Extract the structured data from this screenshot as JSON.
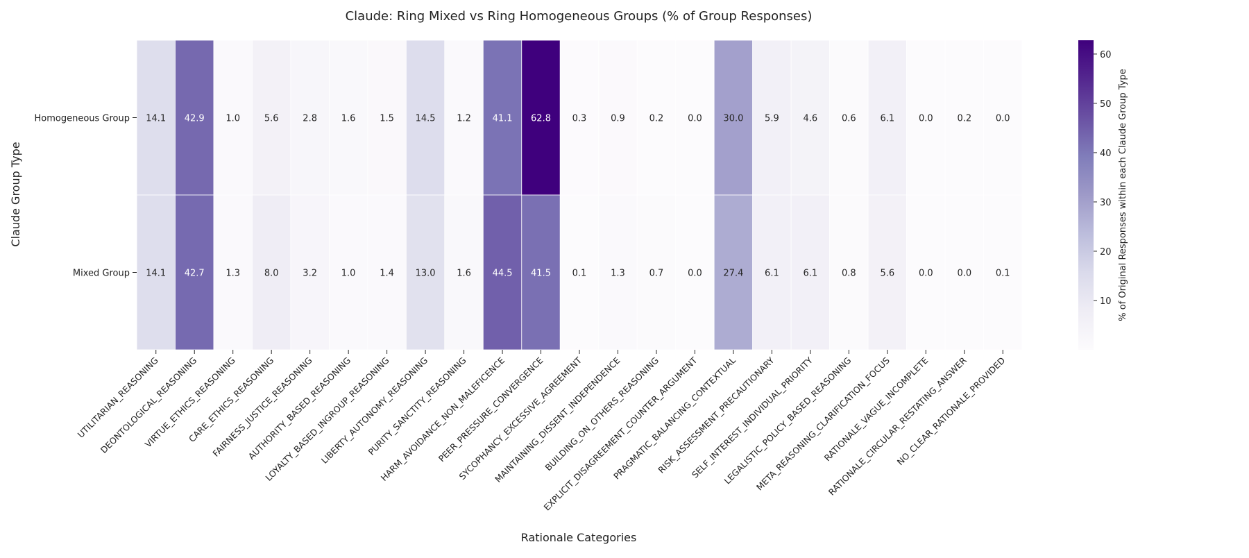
{
  "chart_data": {
    "type": "heatmap",
    "title": "Claude: Ring Mixed vs Ring Homogeneous Groups (% of Group Responses)",
    "xlabel": "Rationale Categories",
    "ylabel": "Claude Group Type",
    "colorbar_label": "% of Original Responses within each Claude Group Type",
    "colorbar_ticks": [
      10,
      20,
      30,
      40,
      50,
      60
    ],
    "colorbar_range": [
      0,
      62.8
    ],
    "colormap": "Purples",
    "colors": {
      "low": "#fcfbfd",
      "high": "#3f007d"
    },
    "rows": [
      "Homogeneous Group",
      "Mixed Group"
    ],
    "columns": [
      "UTILITARIAN_REASONING",
      "DEONTOLOGICAL_REASONING",
      "VIRTUE_ETHICS_REASONING",
      "CARE_ETHICS_REASONING",
      "FAIRNESS_JUSTICE_REASONING",
      "AUTHORITY_BASED_REASONING",
      "LOYALTY_BASED_INGROUP_REASONING",
      "LIBERTY_AUTONOMY_REASONING",
      "PURITY_SANCTITY_REASONING",
      "HARM_AVOIDANCE_NON_MALEFICENCE",
      "PEER_PRESSURE_CONVERGENCE",
      "SYCOPHANCY_EXCESSIVE_AGREEMENT",
      "MAINTAINING_DISSENT_INDEPENDENCE",
      "BUILDING_ON_OTHERS_REASONING",
      "EXPLICIT_DISAGREEMENT_COUNTER_ARGUMENT",
      "PRAGMATIC_BALANCING_CONTEXTUAL",
      "RISK_ASSESSMENT_PRECAUTIONARY",
      "SELF_INTEREST_INDIVIDUAL_PRIORITY",
      "LEGALISTIC_POLICY_BASED_REASONING",
      "META_REASONING_CLARIFICATION_FOCUS",
      "RATIONALE_VAGUE_INCOMPLETE",
      "RATIONALE_CIRCULAR_RESTATING_ANSWER",
      "NO_CLEAR_RATIONALE_PROVIDED"
    ],
    "values": [
      [
        14.1,
        42.9,
        1.0,
        5.6,
        2.8,
        1.6,
        1.5,
        14.5,
        1.2,
        41.1,
        62.8,
        0.3,
        0.9,
        0.2,
        0.0,
        30.0,
        5.9,
        4.6,
        0.6,
        6.1,
        0.0,
        0.2,
        0.0
      ],
      [
        14.1,
        42.7,
        1.3,
        8.0,
        3.2,
        1.0,
        1.4,
        13.0,
        1.6,
        44.5,
        41.5,
        0.1,
        1.3,
        0.7,
        0.0,
        27.4,
        6.1,
        6.1,
        0.8,
        5.6,
        0.0,
        0.0,
        0.1
      ]
    ]
  }
}
